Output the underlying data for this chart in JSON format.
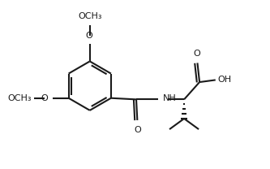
{
  "bg_color": "#ffffff",
  "line_color": "#1a1a1a",
  "line_width": 1.5,
  "font_size": 8.0,
  "figsize": [
    3.33,
    2.08
  ],
  "dpi": 100,
  "xlim": [
    -0.5,
    9.5
  ],
  "ylim": [
    0.5,
    6.8
  ]
}
